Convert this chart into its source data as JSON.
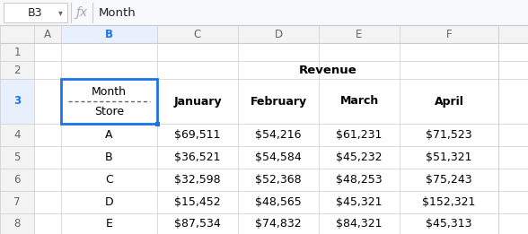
{
  "title_bar": "B3",
  "formula_bar": "Month",
  "col_labels": [
    "A",
    "B",
    "C",
    "D",
    "E",
    "F"
  ],
  "row_numbers": [
    "1",
    "2",
    "3",
    "4",
    "5",
    "6",
    "7",
    "8"
  ],
  "revenue_text": "Revenue",
  "months": [
    "January",
    "February",
    "March",
    "April"
  ],
  "stores": [
    "A",
    "B",
    "C",
    "D",
    "E"
  ],
  "table_data": [
    [
      "$69,511",
      "$54,216",
      "$61,231",
      "$71,523"
    ],
    [
      "$36,521",
      "$54,584",
      "$45,232",
      "$51,321"
    ],
    [
      "$32,598",
      "$52,368",
      "$48,253",
      "$75,243"
    ],
    [
      "$15,452",
      "$48,565",
      "$45,321",
      "$152,321"
    ],
    [
      "$87,534",
      "$74,832",
      "$84,321",
      "$45,313"
    ]
  ],
  "bg_color": "#ffffff",
  "grid_color": "#cccccc",
  "header_bg": "#f3f3f3",
  "header_text": "#666666",
  "cell_text": "#000000",
  "selected_border": "#1a73e8",
  "toolbar_bg": "#f8f9fa",
  "selected_header_bg": "#e8f0fe"
}
